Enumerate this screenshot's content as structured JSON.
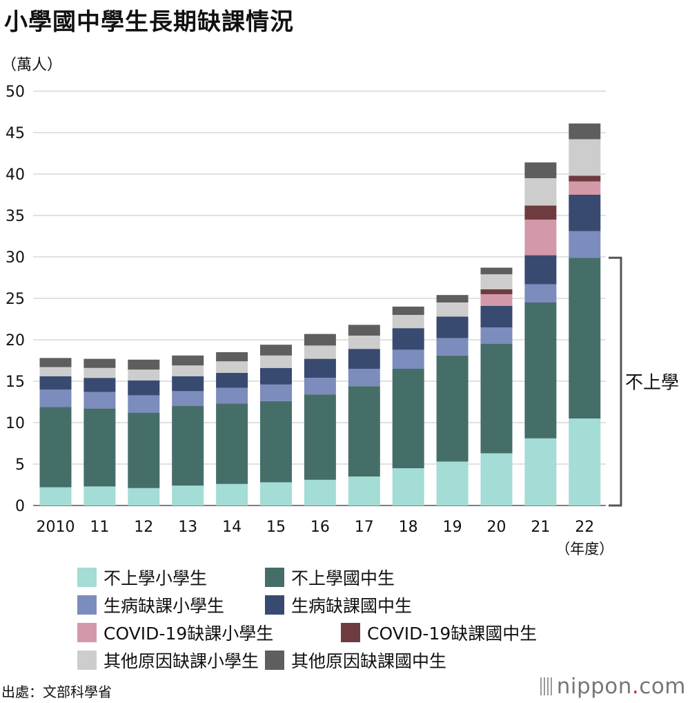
{
  "title": "小學國中學生長期缺課情況",
  "unit_label": "（萬人）",
  "bracket_label": "不上學",
  "source": "出處：文部科學省",
  "logo": {
    "text": "nippon",
    "dot": ".",
    "suffix": "com"
  },
  "chart_data": {
    "type": "bar",
    "stacked": true,
    "title": "小學國中學生長期缺課情況",
    "ylabel": "（萬人）",
    "xlabel": "（年度）",
    "ylim": [
      0,
      50
    ],
    "yticks": [
      0,
      5,
      10,
      15,
      20,
      25,
      30,
      35,
      40,
      45,
      50
    ],
    "categories": [
      "2010",
      "11",
      "12",
      "13",
      "14",
      "15",
      "16",
      "17",
      "18",
      "19",
      "20",
      "21",
      "22"
    ],
    "series": [
      {
        "name": "不上學小學生",
        "color": "#a3ddd5",
        "values": [
          2.2,
          2.3,
          2.1,
          2.4,
          2.6,
          2.8,
          3.1,
          3.5,
          4.5,
          5.3,
          6.3,
          8.1,
          10.5
        ]
      },
      {
        "name": "不上學國中生",
        "color": "#456e68",
        "values": [
          9.7,
          9.4,
          9.1,
          9.6,
          9.7,
          9.8,
          10.3,
          10.9,
          12.0,
          12.8,
          13.2,
          16.4,
          19.4
        ]
      },
      {
        "name": "生病缺課小學生",
        "color": "#7c8cbd",
        "values": [
          2.1,
          2.0,
          2.1,
          1.8,
          1.9,
          2.0,
          2.0,
          2.1,
          2.3,
          2.1,
          2.0,
          2.2,
          3.2
        ]
      },
      {
        "name": "生病缺課國中生",
        "color": "#394a70",
        "values": [
          1.6,
          1.7,
          1.8,
          1.8,
          1.8,
          2.0,
          2.3,
          2.4,
          2.6,
          2.6,
          2.6,
          3.5,
          4.4
        ]
      },
      {
        "name": "COVID-19缺課小學生",
        "color": "#d399a9",
        "values": [
          0,
          0,
          0,
          0,
          0,
          0,
          0,
          0,
          0,
          0,
          1.4,
          4.3,
          1.6
        ]
      },
      {
        "name": "COVID-19缺課國中生",
        "color": "#6e3c40",
        "values": [
          0,
          0,
          0,
          0,
          0,
          0,
          0,
          0,
          0,
          0,
          0.6,
          1.7,
          0.7
        ]
      },
      {
        "name": "其他原因缺課小學生",
        "color": "#cdcdcd",
        "values": [
          1.1,
          1.2,
          1.3,
          1.3,
          1.4,
          1.5,
          1.6,
          1.6,
          1.6,
          1.7,
          1.8,
          3.3,
          4.4
        ]
      },
      {
        "name": "其他原因缺課國中生",
        "color": "#5e5e5e",
        "values": [
          1.1,
          1.1,
          1.2,
          1.2,
          1.1,
          1.3,
          1.4,
          1.3,
          1.0,
          0.9,
          0.8,
          1.9,
          1.9
        ]
      }
    ]
  }
}
